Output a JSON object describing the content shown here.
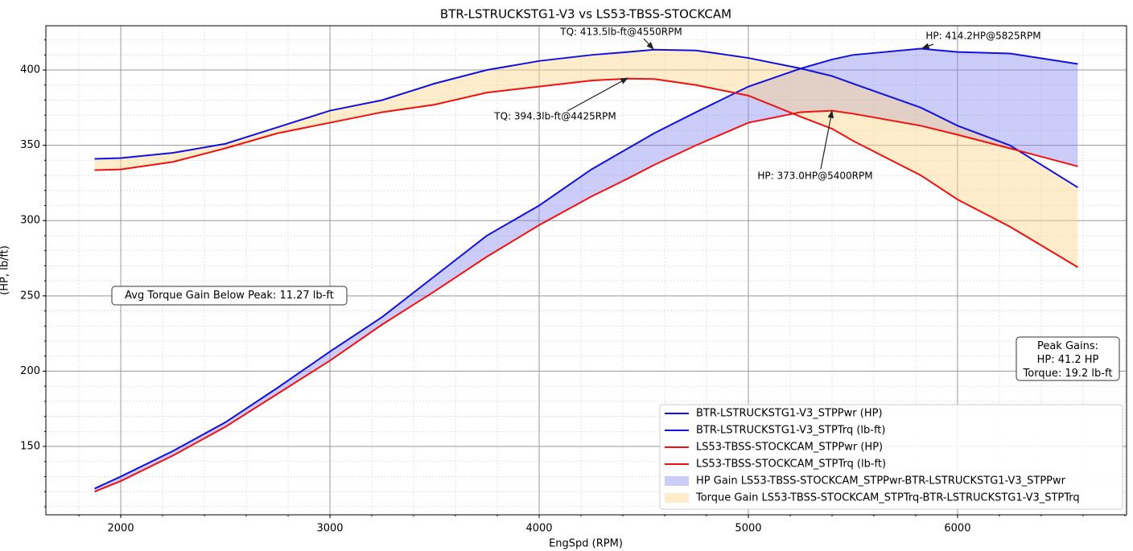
{
  "chart_data": {
    "type": "line",
    "title": "BTR-LSTRUCKSTG1-V3 vs LS53-TBSS-STOCKCAM",
    "x_label": "EngSpd (RPM)",
    "y_label": "(HP, lb/ft)",
    "x": [
      1875,
      2000,
      2250,
      2500,
      2750,
      3000,
      3250,
      3500,
      3750,
      4000,
      4250,
      4425,
      4550,
      4750,
      5000,
      5250,
      5400,
      5500,
      5825,
      6000,
      6250,
      6575
    ],
    "series": [
      {
        "name": "BTR-LSTRUCKSTG1-V3_STPPwr (HP)",
        "color": "#1010e0",
        "values": [
          122,
          130,
          147,
          166,
          189,
          213,
          236,
          263,
          290,
          310,
          334,
          348,
          358,
          372,
          389,
          401,
          407,
          410,
          414.2,
          412,
          411,
          404
        ]
      },
      {
        "name": "BTR-LSTRUCKSTG1-V3_STPTrq (lb-ft)",
        "color": "#1010e0",
        "values": [
          341,
          341.5,
          345,
          351,
          362,
          373,
          380,
          391,
          400,
          406,
          410,
          412,
          413.5,
          413,
          408,
          401,
          396,
          391,
          375,
          363,
          350,
          322
        ]
      },
      {
        "name": "LS53-TBSS-STOCKCAM_STPPwr (HP)",
        "color": "#f01010",
        "values": [
          120,
          127,
          144,
          163,
          185,
          207,
          231,
          253,
          276,
          297,
          316,
          328,
          337,
          350,
          365,
          372,
          373,
          371,
          363,
          357,
          348,
          336
        ]
      },
      {
        "name": "LS53-TBSS-STOCKCAM_STPTrq (lb-ft)",
        "color": "#f01010",
        "values": [
          333.5,
          334,
          339,
          348,
          358,
          365,
          372,
          377,
          385,
          389,
          393,
          394.3,
          394,
          390,
          383,
          369,
          361,
          353,
          330,
          314,
          296,
          269
        ]
      }
    ],
    "fills": [
      {
        "name": "HP Gain LS53-TBSS-STOCKCAM_STPPwr-BTR-LSTRUCKSTG1-V3_STPPwr",
        "color": "#8080f0"
      },
      {
        "name": "Torque Gain LS53-TBSS-STOCKCAM_STPTrq-BTR-LSTRUCKSTG1-V3_STPTrq",
        "color": "#fcd48a"
      }
    ],
    "annotations": [
      {
        "text": "TQ: 413.5lb-ft@4550RPM",
        "color": "#1010e0"
      },
      {
        "text": "HP: 414.2HP@5825RPM",
        "color": "#1010e0"
      },
      {
        "text": "TQ: 394.3lb-ft@4425RPM",
        "color": "#f01010"
      },
      {
        "text": "HP: 373.0HP@5400RPM",
        "color": "#f01010"
      }
    ],
    "text_boxes": [
      {
        "lines": [
          "Avg Torque Gain Below Peak: 11.27 lb-ft"
        ]
      },
      {
        "lines": [
          "Peak Gains:",
          "HP: 41.2 HP",
          "Torque: 19.2 lb-ft"
        ]
      }
    ],
    "xlim": [
      1642,
      6808
    ],
    "ylim": [
      104.6,
      429.4
    ],
    "xticks": [
      2000,
      3000,
      4000,
      5000,
      6000
    ],
    "yticks": [
      150,
      200,
      250,
      300,
      350,
      400
    ],
    "grid": true,
    "minor_grid": true,
    "legend": "lower right"
  }
}
